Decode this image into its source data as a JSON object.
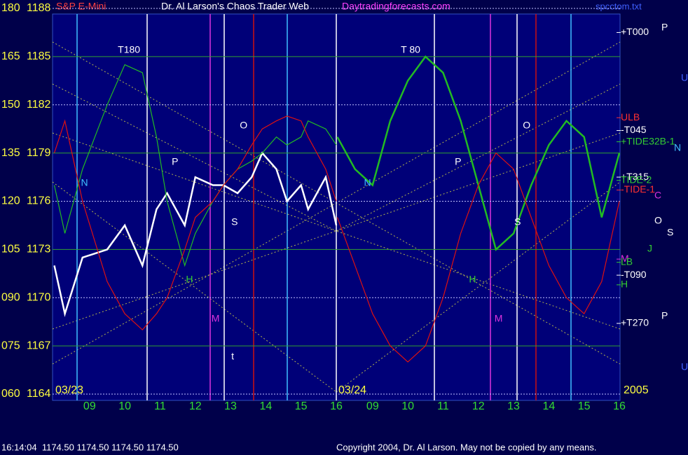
{
  "header": {
    "instrument": "S&P E-Mini",
    "title": "Dr. Al Larson's Chaos Trader Web",
    "site": "Daytradingforecasts.com",
    "file": "spcctom.txt"
  },
  "chart_data": [
    {
      "type": "line",
      "date": "03/23",
      "xlim": [
        7.95,
        16
      ],
      "xticks": [
        {
          "value": 9,
          "label": "09"
        },
        10,
        11,
        12,
        13,
        14,
        15,
        16
      ],
      "ylim": [
        1164,
        1188
      ],
      "yticks": [
        1164,
        1167,
        1170,
        1173,
        1176,
        1179,
        1182,
        1185,
        1188
      ],
      "y2lim": [
        60,
        180
      ],
      "y2ticks": [
        {
          "value": 60,
          "label": "060"
        },
        {
          "value": 75,
          "label": "075"
        },
        {
          "value": 90,
          "label": "090"
        },
        105,
        120,
        135,
        150,
        165,
        180
      ],
      "grid": true,
      "x": [
        8.0,
        8.3,
        8.8,
        9.5,
        10.0,
        10.5,
        10.9,
        11.2,
        11.7,
        12.0,
        12.5,
        12.8,
        13.2,
        13.6,
        13.9,
        14.3,
        14.6,
        15.0,
        15.2,
        15.7,
        16.0
      ],
      "series": [
        {
          "color": "#ffffff",
          "values": [
            1172,
            1169,
            1172.5,
            1173,
            1174.5,
            1172,
            1175.5,
            1176.5,
            1174.5,
            1177.5,
            1177,
            1177,
            1176.5,
            1177.5,
            1179,
            1178,
            1176,
            1177,
            1175.5,
            1177.5,
            1174.5
          ]
        },
        {
          "color": "#22bb22",
          "values": [
            1177,
            1174,
            1178,
            1182,
            1184.5,
            1184,
            1180,
            1176,
            1172,
            1174,
            1176,
            1177,
            1178,
            1178.5,
            1179,
            1180,
            1179.5,
            1180,
            1181,
            1180.5,
            1179.5
          ]
        },
        {
          "color": "#dd1111",
          "values": [
            1179,
            1181,
            1176,
            1171,
            1169,
            1168,
            1169,
            1170,
            1173,
            1175,
            1176,
            1177,
            1178,
            1179.5,
            1180.5,
            1181,
            1181.3,
            1181,
            1180,
            1178,
            1176
          ]
        }
      ],
      "annotations": [
        "T180",
        "P",
        "N",
        "O",
        "S",
        "H",
        "M",
        "t"
      ]
    },
    {
      "type": "line",
      "date": "03/24",
      "year": "2005",
      "xlim": [
        7.95,
        16
      ],
      "xticks": [
        {
          "value": 9,
          "label": "09"
        },
        10,
        11,
        12,
        13,
        14,
        15,
        16
      ],
      "ylim": [
        1164,
        1188
      ],
      "x": [
        8.0,
        8.5,
        9.0,
        9.5,
        10.0,
        10.5,
        11.0,
        11.5,
        12.0,
        12.5,
        13.0,
        13.5,
        14.0,
        14.5,
        15.0,
        15.5,
        16.0
      ],
      "series": [
        {
          "color": "#22bb22",
          "values": [
            1180,
            1178,
            1177,
            1181,
            1183.5,
            1185,
            1184,
            1181,
            1177,
            1173,
            1174,
            1177,
            1179.5,
            1181,
            1180,
            1175,
            1179
          ]
        },
        {
          "color": "#dd1111",
          "values": [
            1175,
            1172,
            1169,
            1167,
            1166,
            1167,
            1170,
            1174,
            1177,
            1179,
            1178,
            1175,
            1172,
            1170,
            1169,
            1171,
            1176
          ]
        }
      ],
      "annotations": [
        "T 80",
        "P",
        "N",
        "O",
        "S",
        "H",
        "M"
      ],
      "levels": [
        {
          "label": "+T000",
          "value": 1186.5,
          "color": "#ffffff"
        },
        {
          "label": "ULB",
          "value": 1181.2,
          "color": "#ff3030"
        },
        {
          "label": "-T045",
          "value": 1180.4,
          "color": "#ffffff"
        },
        {
          "label": "+TIDE32B-1",
          "value": 1179.7,
          "color": "#33cc33"
        },
        {
          "label": "+T315",
          "value": 1177.5,
          "color": "#ffffff"
        },
        {
          "label": "TIDE-2",
          "value": 1177.3,
          "color": "#33cc33"
        },
        {
          "label": "-TIDE-1",
          "value": 1176.7,
          "color": "#ff3030"
        },
        {
          "label": "M",
          "value": 1172.4,
          "color": "#dd33dd"
        },
        {
          "label": "LB",
          "value": 1172.2,
          "color": "#33cc33"
        },
        {
          "label": "-T090",
          "value": 1171.4,
          "color": "#ffffff"
        },
        {
          "label": "H",
          "value": 1170.8,
          "color": "#33cc33"
        },
        {
          "label": "+T270",
          "value": 1168.4,
          "color": "#ffffff"
        }
      ]
    }
  ],
  "side_letters": [
    "P",
    "U",
    "N",
    "C",
    "O",
    "S",
    "J",
    "P",
    "U"
  ],
  "footer": {
    "quote": "16:14:04  1174.50 1174.50 1174.50 1174.50",
    "copyright": "Copyright 2004, Dr. Al Larson. May not be copied by any means."
  }
}
